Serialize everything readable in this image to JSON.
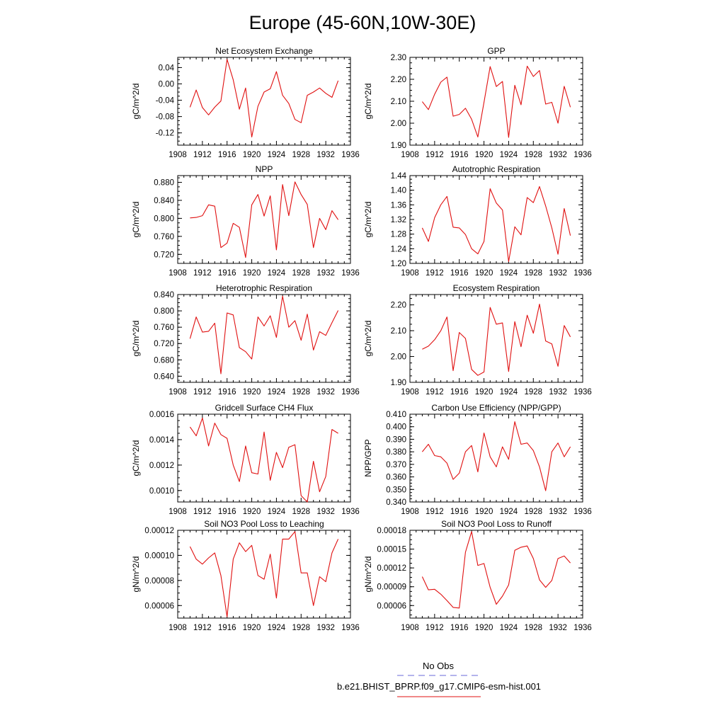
{
  "title": "Europe (45-60N,10W-30E)",
  "legend": {
    "obs_label": "No Obs",
    "obs_color": "#6a6ad8",
    "model_label": "b.e21.BHIST_BPRP.f09_g17.CMIP6-esm-hist.001",
    "model_color": "#e01010"
  },
  "chart_data": [
    {
      "type": "line",
      "title": "Net Ecosystem Exchange",
      "ylabel": "gC/m^2/d",
      "xlim": [
        1908,
        1936
      ],
      "ylim": [
        -0.15,
        0.065
      ],
      "x_ticks": [
        "1908",
        "1912",
        "1916",
        "1920",
        "1924",
        "1928",
        "1932",
        "1936"
      ],
      "y_ticks": [
        0.04,
        0.0,
        -0.04,
        -0.08,
        -0.12
      ],
      "y_tick_labels": [
        "0.04",
        "0.00",
        "-0.04",
        "-0.08",
        "-0.12"
      ],
      "x": [
        1910,
        1911,
        1912,
        1913,
        1914,
        1915,
        1916,
        1917,
        1918,
        1919,
        1920,
        1921,
        1922,
        1923,
        1924,
        1925,
        1926,
        1927,
        1928,
        1929,
        1930,
        1931,
        1932,
        1933,
        1934
      ],
      "series": [
        {
          "values": [
            -0.057,
            -0.015,
            -0.058,
            -0.076,
            -0.057,
            -0.042,
            0.06,
            0.01,
            -0.062,
            -0.01,
            -0.13,
            -0.055,
            -0.02,
            -0.012,
            0.03,
            -0.028,
            -0.048,
            -0.087,
            -0.095,
            -0.028,
            -0.02,
            -0.01,
            -0.023,
            -0.033,
            0.008
          ],
          "color": "#e01010"
        }
      ]
    },
    {
      "type": "line",
      "title": "GPP",
      "ylabel": "gC/m^2/d",
      "xlim": [
        1908,
        1936
      ],
      "ylim": [
        1.9,
        2.3
      ],
      "x_ticks": [
        "1908",
        "1912",
        "1916",
        "1920",
        "1924",
        "1928",
        "1932",
        "1936"
      ],
      "y_ticks": [
        2.3,
        2.2,
        2.1,
        2.0,
        1.9
      ],
      "y_tick_labels": [
        "2.30",
        "2.20",
        "2.10",
        "2.00",
        "1.90"
      ],
      "x": [
        1910,
        1911,
        1912,
        1913,
        1914,
        1915,
        1916,
        1917,
        1918,
        1919,
        1920,
        1921,
        1922,
        1923,
        1924,
        1925,
        1926,
        1927,
        1928,
        1929,
        1930,
        1931,
        1932,
        1933,
        1934
      ],
      "series": [
        {
          "values": [
            2.098,
            2.062,
            2.132,
            2.187,
            2.21,
            2.032,
            2.04,
            2.068,
            2.018,
            1.937,
            2.095,
            2.258,
            2.167,
            2.19,
            1.935,
            2.173,
            2.084,
            2.26,
            2.213,
            2.24,
            2.087,
            2.095,
            2.0,
            2.168,
            2.073
          ],
          "color": "#e01010"
        }
      ]
    },
    {
      "type": "line",
      "title": "NPP",
      "ylabel": "gC/m^2/d",
      "xlim": [
        1908,
        1936
      ],
      "ylim": [
        0.7,
        0.895
      ],
      "x_ticks": [
        "1908",
        "1912",
        "1916",
        "1920",
        "1924",
        "1928",
        "1932",
        "1936"
      ],
      "y_ticks": [
        0.88,
        0.84,
        0.8,
        0.76,
        0.72
      ],
      "y_tick_labels": [
        "0.880",
        "0.840",
        "0.800",
        "0.760",
        "0.720"
      ],
      "x": [
        1910,
        1911,
        1912,
        1913,
        1914,
        1915,
        1916,
        1917,
        1918,
        1919,
        1920,
        1921,
        1922,
        1923,
        1924,
        1925,
        1926,
        1927,
        1928,
        1929,
        1930,
        1931,
        1932,
        1933,
        1934
      ],
      "series": [
        {
          "values": [
            0.801,
            0.802,
            0.806,
            0.83,
            0.827,
            0.735,
            0.745,
            0.789,
            0.78,
            0.713,
            0.83,
            0.853,
            0.805,
            0.85,
            0.73,
            0.875,
            0.806,
            0.881,
            0.853,
            0.831,
            0.735,
            0.8,
            0.775,
            0.817,
            0.797
          ],
          "color": "#e01010"
        }
      ]
    },
    {
      "type": "line",
      "title": "Autotrophic Respiration",
      "ylabel": "gC/m^2/d",
      "xlim": [
        1908,
        1936
      ],
      "ylim": [
        1.2,
        1.44
      ],
      "x_ticks": [
        "1908",
        "1912",
        "1916",
        "1920",
        "1924",
        "1928",
        "1932",
        "1936"
      ],
      "y_ticks": [
        1.44,
        1.4,
        1.36,
        1.32,
        1.28,
        1.24,
        1.2
      ],
      "y_tick_labels": [
        "1.44",
        "1.40",
        "1.36",
        "1.32",
        "1.28",
        "1.24",
        "1.20"
      ],
      "x": [
        1910,
        1911,
        1912,
        1913,
        1914,
        1915,
        1916,
        1917,
        1918,
        1919,
        1920,
        1921,
        1922,
        1923,
        1924,
        1925,
        1926,
        1927,
        1928,
        1929,
        1930,
        1931,
        1932,
        1933,
        1934
      ],
      "series": [
        {
          "values": [
            1.297,
            1.26,
            1.325,
            1.36,
            1.383,
            1.299,
            1.297,
            1.279,
            1.24,
            1.226,
            1.26,
            1.404,
            1.365,
            1.346,
            1.205,
            1.3,
            1.278,
            1.38,
            1.366,
            1.41,
            1.357,
            1.297,
            1.225,
            1.35,
            1.276
          ],
          "color": "#e01010"
        }
      ]
    },
    {
      "type": "line",
      "title": "Heterotrophic Respiration",
      "ylabel": "gC/m^2/d",
      "xlim": [
        1908,
        1936
      ],
      "ylim": [
        0.625,
        0.84
      ],
      "x_ticks": [
        "1908",
        "1912",
        "1916",
        "1920",
        "1924",
        "1928",
        "1932",
        "1936"
      ],
      "y_ticks": [
        0.84,
        0.8,
        0.76,
        0.72,
        0.68,
        0.64
      ],
      "y_tick_labels": [
        "0.840",
        "0.800",
        "0.760",
        "0.720",
        "0.680",
        "0.640"
      ],
      "x": [
        1910,
        1911,
        1912,
        1913,
        1914,
        1915,
        1916,
        1917,
        1918,
        1919,
        1920,
        1921,
        1922,
        1923,
        1924,
        1925,
        1926,
        1927,
        1928,
        1929,
        1930,
        1931,
        1932,
        1933,
        1934
      ],
      "series": [
        {
          "values": [
            0.732,
            0.785,
            0.748,
            0.75,
            0.77,
            0.646,
            0.795,
            0.79,
            0.71,
            0.7,
            0.682,
            0.785,
            0.763,
            0.788,
            0.735,
            0.836,
            0.76,
            0.776,
            0.728,
            0.792,
            0.704,
            0.749,
            0.74,
            0.771,
            0.801
          ],
          "color": "#e01010"
        }
      ]
    },
    {
      "type": "line",
      "title": "Ecosystem Respiration",
      "ylabel": "gC/m^2/d",
      "xlim": [
        1908,
        1936
      ],
      "ylim": [
        1.9,
        2.24
      ],
      "x_ticks": [
        "1908",
        "1912",
        "1916",
        "1920",
        "1924",
        "1928",
        "1932",
        "1936"
      ],
      "y_ticks": [
        2.2,
        2.1,
        2.0,
        1.9
      ],
      "y_tick_labels": [
        "2.20",
        "2.10",
        "2.00",
        "1.90"
      ],
      "x": [
        1910,
        1911,
        1912,
        1913,
        1914,
        1915,
        1916,
        1917,
        1918,
        1919,
        1920,
        1921,
        1922,
        1923,
        1924,
        1925,
        1926,
        1927,
        1928,
        1929,
        1930,
        1931,
        1932,
        1933,
        1934
      ],
      "series": [
        {
          "values": [
            2.028,
            2.04,
            2.065,
            2.1,
            2.153,
            1.945,
            2.093,
            2.07,
            1.95,
            1.927,
            1.94,
            2.19,
            2.125,
            2.13,
            1.942,
            2.135,
            2.038,
            2.16,
            2.09,
            2.203,
            2.06,
            2.049,
            1.962,
            2.12,
            2.076
          ],
          "color": "#e01010"
        }
      ]
    },
    {
      "type": "line",
      "title": "Gridcell Surface CH4 Flux",
      "ylabel": "gC/m^2/d",
      "xlim": [
        1908,
        1936
      ],
      "ylim": [
        0.00091,
        0.0016
      ],
      "x_ticks": [
        "1908",
        "1912",
        "1916",
        "1920",
        "1924",
        "1928",
        "1932",
        "1936"
      ],
      "y_ticks": [
        0.0016,
        0.0014,
        0.0012,
        0.001
      ],
      "y_tick_labels": [
        "0.0016",
        "0.0014",
        "0.0012",
        "0.0010"
      ],
      "x": [
        1910,
        1911,
        1912,
        1913,
        1914,
        1915,
        1916,
        1917,
        1918,
        1919,
        1920,
        1921,
        1922,
        1923,
        1924,
        1925,
        1926,
        1927,
        1928,
        1929,
        1930,
        1931,
        1932,
        1933,
        1934
      ],
      "series": [
        {
          "values": [
            0.0015,
            0.00143,
            0.00157,
            0.00135,
            0.00153,
            0.00144,
            0.00141,
            0.0012,
            0.00107,
            0.00135,
            0.00114,
            0.00113,
            0.00146,
            0.00108,
            0.0013,
            0.00118,
            0.00134,
            0.00136,
            0.00096,
            0.00091,
            0.00123,
            0.00099,
            0.00111,
            0.00148,
            0.00145
          ],
          "color": "#e01010"
        }
      ]
    },
    {
      "type": "line",
      "title": "Carbon Use Efficiency (NPP/GPP)",
      "ylabel": "NPP/GPP",
      "xlim": [
        1908,
        1936
      ],
      "ylim": [
        0.34,
        0.41
      ],
      "x_ticks": [
        "1908",
        "1912",
        "1916",
        "1920",
        "1924",
        "1928",
        "1932",
        "1936"
      ],
      "y_ticks": [
        0.41,
        0.4,
        0.39,
        0.38,
        0.37,
        0.36,
        0.35,
        0.34
      ],
      "y_tick_labels": [
        "0.410",
        "0.400",
        "0.390",
        "0.380",
        "0.370",
        "0.360",
        "0.350",
        "0.340"
      ],
      "x": [
        1910,
        1911,
        1912,
        1913,
        1914,
        1915,
        1916,
        1917,
        1918,
        1919,
        1920,
        1921,
        1922,
        1923,
        1924,
        1925,
        1926,
        1927,
        1928,
        1929,
        1930,
        1931,
        1932,
        1933,
        1934
      ],
      "series": [
        {
          "values": [
            0.38,
            0.386,
            0.377,
            0.376,
            0.371,
            0.358,
            0.363,
            0.38,
            0.385,
            0.364,
            0.395,
            0.376,
            0.368,
            0.384,
            0.374,
            0.404,
            0.386,
            0.387,
            0.381,
            0.368,
            0.349,
            0.38,
            0.387,
            0.376,
            0.384
          ],
          "color": "#e01010"
        }
      ]
    },
    {
      "type": "line",
      "title": "Soil NO3 Pool Loss to Leaching",
      "ylabel": "gN/m^2/d",
      "xlim": [
        1908,
        1936
      ],
      "ylim": [
        5e-05,
        0.00012
      ],
      "x_ticks": [
        "1908",
        "1912",
        "1916",
        "1920",
        "1924",
        "1928",
        "1932",
        "1936"
      ],
      "y_ticks": [
        0.00012,
        0.0001,
        8e-05,
        6e-05
      ],
      "y_tick_labels": [
        "0.00012",
        "0.00010",
        "0.00008",
        "0.00006"
      ],
      "x": [
        1910,
        1911,
        1912,
        1913,
        1914,
        1915,
        1916,
        1917,
        1918,
        1919,
        1920,
        1921,
        1922,
        1923,
        1924,
        1925,
        1926,
        1927,
        1928,
        1929,
        1930,
        1931,
        1932,
        1933,
        1934
      ],
      "series": [
        {
          "values": [
            0.000107,
            9.7e-05,
            9.3e-05,
            9.8e-05,
            0.000102,
            8.4e-05,
            5.1e-05,
            9.7e-05,
            0.00011,
            0.000103,
            0.000108,
            8.4e-05,
            8.1e-05,
            0.000101,
            6.6e-05,
            0.000113,
            0.000113,
            0.000119,
            8.6e-05,
            8.6e-05,
            6e-05,
            8.3e-05,
            7.9e-05,
            0.000102,
            0.000113
          ],
          "color": "#e01010"
        }
      ]
    },
    {
      "type": "line",
      "title": "Soil NO3 Pool Loss to Runoff",
      "ylabel": "gN/m^2/d",
      "xlim": [
        1908,
        1936
      ],
      "ylim": [
        4e-05,
        0.00018
      ],
      "x_ticks": [
        "1908",
        "1912",
        "1916",
        "1920",
        "1924",
        "1928",
        "1932",
        "1936"
      ],
      "y_ticks": [
        0.00018,
        0.00015,
        0.00012,
        9e-05,
        6e-05
      ],
      "y_tick_labels": [
        "0.00018",
        "0.00015",
        "0.00012",
        "0.00009",
        "0.00006"
      ],
      "x": [
        1910,
        1911,
        1912,
        1913,
        1914,
        1915,
        1916,
        1917,
        1918,
        1919,
        1920,
        1921,
        1922,
        1923,
        1924,
        1925,
        1926,
        1927,
        1928,
        1929,
        1930,
        1931,
        1932,
        1933,
        1934
      ],
      "series": [
        {
          "values": [
            0.000106,
            8.5e-05,
            8.6e-05,
            7.8e-05,
            6.8e-05,
            5.7e-05,
            5.6e-05,
            0.000145,
            0.000178,
            0.000124,
            0.000127,
            8.9e-05,
            6.2e-05,
            7.5e-05,
            9.3e-05,
            0.000148,
            0.000153,
            0.000155,
            0.000135,
            0.000101,
            8.9e-05,
            0.0001,
            0.000135,
            0.000139,
            0.000128
          ],
          "color": "#e01010"
        }
      ]
    }
  ]
}
